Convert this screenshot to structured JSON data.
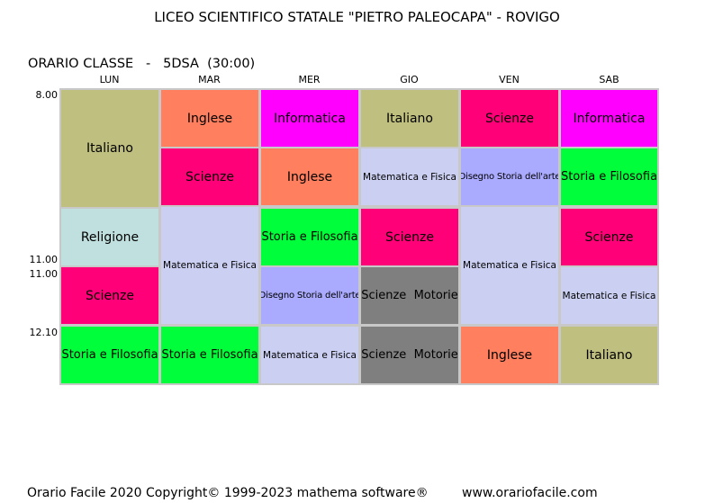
{
  "header": {
    "school": "LICEO SCIENTIFICO STATALE \"PIETRO PALEOCAPA\" - ROVIGO",
    "class_heading": "ORARIO CLASSE   -   5DSA  (30:00)"
  },
  "days": [
    "LUN",
    "MAR",
    "MER",
    "GIO",
    "VEN",
    "SAB"
  ],
  "times": [
    "8.00",
    "11.00",
    "11.00",
    "12.10"
  ],
  "colors": {
    "italiano": "#bfbf7f",
    "inglese": "#ff7f5f",
    "informatica": "#ff00ff",
    "scienze": "#ff0078",
    "matematica_fisica": "#cbd0f2",
    "disegno_storia_arte": "#aaaaff",
    "storia_filosofia": "#00ff3a",
    "religione": "#bfe0df",
    "scienze_motorie": "#7f7f7f",
    "grid_border": "#c8c8c8"
  },
  "schedule": {
    "lun": [
      "Italiano",
      "Religione",
      "Scienze",
      "Storia e Filosofia"
    ],
    "mar": [
      "Inglese",
      "Scienze",
      "Matematica e Fisica",
      "Storia e Filosofia"
    ],
    "mer": [
      "Informatica",
      "Inglese",
      "Storia e Filosofia",
      "Disegno Storia dell'arte",
      "Matematica e Fisica"
    ],
    "gio": [
      "Italiano",
      "Matematica e Fisica",
      "Scienze",
      "Scienze  Motorie",
      "Scienze  Motorie"
    ],
    "ven": [
      "Scienze",
      "Disegno Storia dell'arte",
      "Matematica e Fisica",
      "Inglese"
    ],
    "sab": [
      "Informatica",
      "Storia e Filosofia",
      "Scienze",
      "Matematica e Fisica",
      "Italiano"
    ]
  },
  "footer": {
    "copyright": "Orario Facile 2020  Copyright© 1999-2023 mathema software®",
    "website": "www.orariofacile.com"
  }
}
